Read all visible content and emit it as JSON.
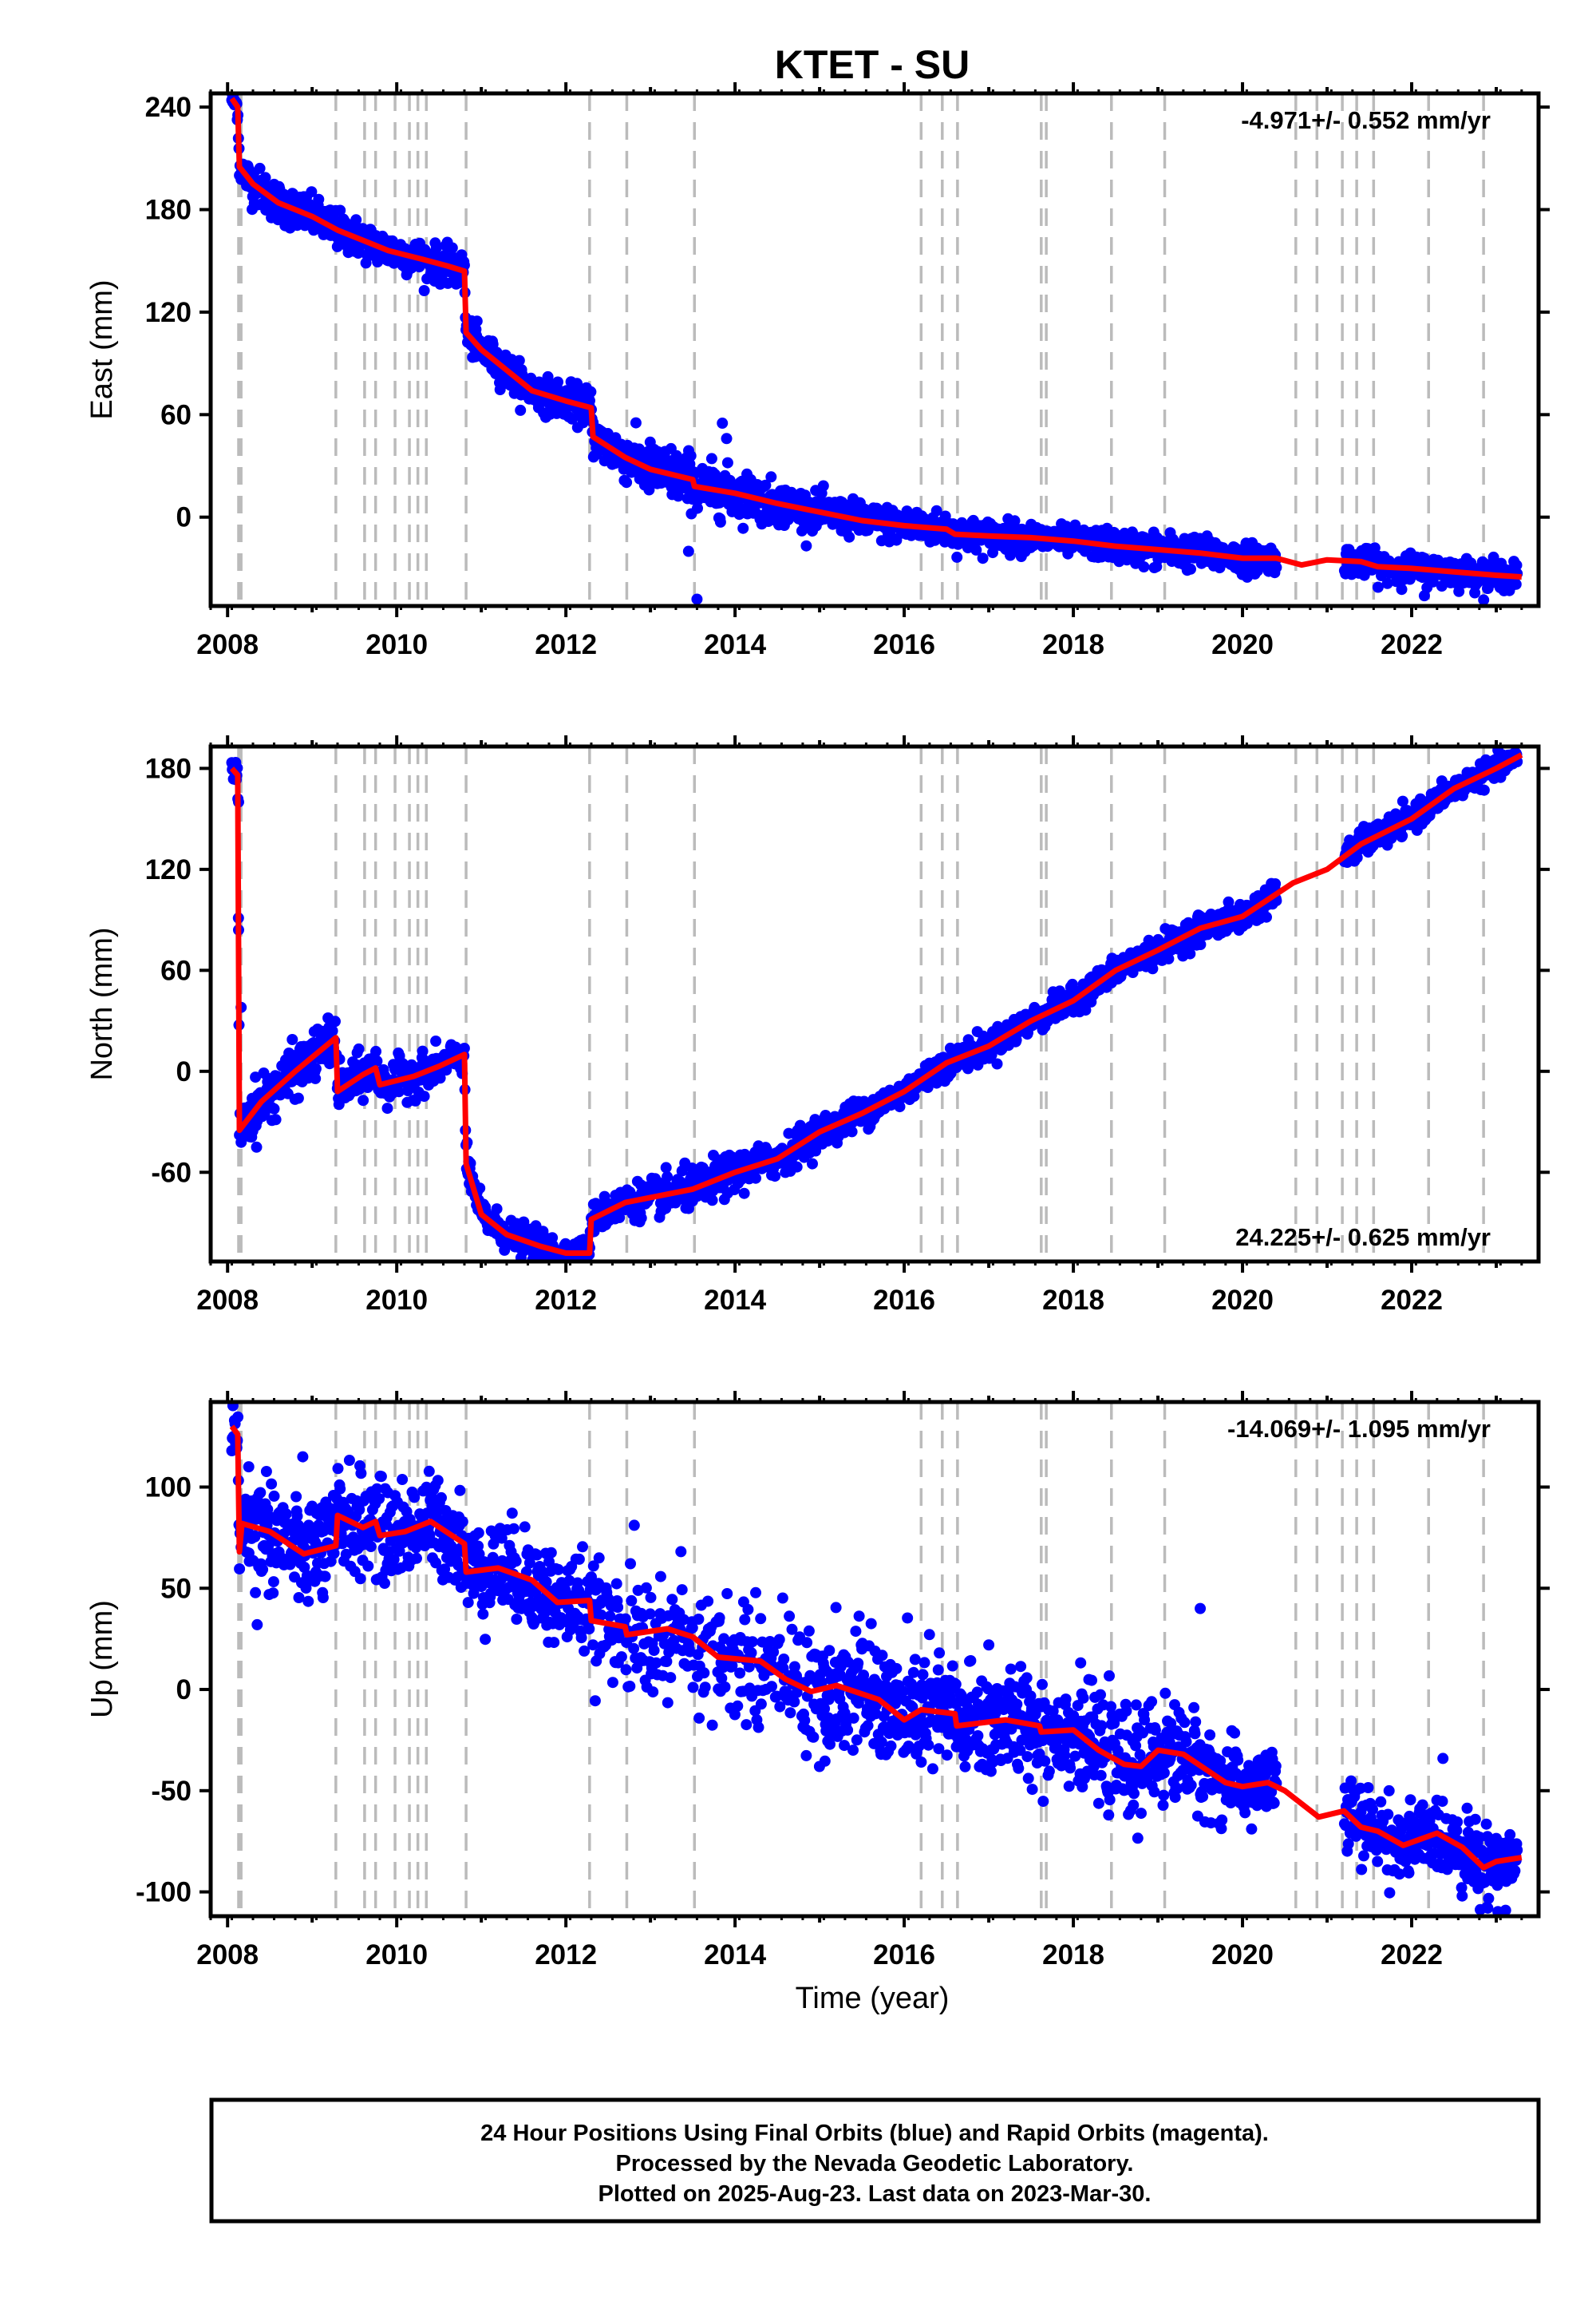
{
  "title": "KTET - SU",
  "xlabel": "Time (year)",
  "footer": {
    "line1": "24 Hour Positions Using Final Orbits (blue) and Rapid Orbits (magenta).",
    "line2": "Processed by the Nevada Geodetic Laboratory.",
    "line3": "Plotted on 2025-Aug-23. Last data on 2023-Mar-30."
  },
  "colors": {
    "data": "#0000ff",
    "model": "#ff0000",
    "steps": "#bbbbbb",
    "frame": "#000000"
  },
  "chart_data": [
    {
      "type": "scatter",
      "component": "east",
      "ylabel": "East (mm)",
      "rate_label": "-4.971+/- 0.552 mm/yr",
      "rate_position": "top-right",
      "xlim": [
        2007.8,
        2023.5
      ],
      "ylim": [
        -52,
        248
      ],
      "xticks": [
        "2008",
        "2010",
        "2012",
        "2014",
        "2016",
        "2018",
        "2020",
        "2022"
      ],
      "yticks": [
        "240",
        "180",
        "120",
        "60",
        "0"
      ],
      "model": [
        [
          2008.05,
          245
        ],
        [
          2008.12,
          240
        ],
        [
          2008.14,
          205
        ],
        [
          2008.3,
          195
        ],
        [
          2008.6,
          184
        ],
        [
          2009.0,
          176
        ],
        [
          2009.3,
          168
        ],
        [
          2009.6,
          162
        ],
        [
          2009.9,
          156
        ],
        [
          2010.3,
          151
        ],
        [
          2010.6,
          147
        ],
        [
          2010.8,
          144
        ],
        [
          2010.82,
          108
        ],
        [
          2011.0,
          98
        ],
        [
          2011.3,
          86
        ],
        [
          2011.6,
          74
        ],
        [
          2012.0,
          68
        ],
        [
          2012.3,
          64
        ],
        [
          2012.32,
          47
        ],
        [
          2012.7,
          35
        ],
        [
          2013.0,
          28
        ],
        [
          2013.5,
          22
        ],
        [
          2013.52,
          18
        ],
        [
          2014.0,
          14
        ],
        [
          2014.5,
          8
        ],
        [
          2015.0,
          3
        ],
        [
          2015.5,
          -2
        ],
        [
          2016.0,
          -5
        ],
        [
          2016.5,
          -7
        ],
        [
          2016.6,
          -10
        ],
        [
          2017.0,
          -11
        ],
        [
          2017.5,
          -12
        ],
        [
          2018.0,
          -14
        ],
        [
          2018.5,
          -17
        ],
        [
          2019.0,
          -19
        ],
        [
          2019.5,
          -21
        ],
        [
          2020.0,
          -24
        ],
        [
          2020.4,
          -24
        ],
        [
          2020.7,
          -28
        ],
        [
          2021.0,
          -25
        ],
        [
          2021.4,
          -26
        ],
        [
          2021.6,
          -29
        ],
        [
          2022.0,
          -30
        ],
        [
          2022.5,
          -32
        ],
        [
          2023.0,
          -34
        ],
        [
          2023.3,
          -35
        ]
      ],
      "spread": [
        [
          2008.05,
          3
        ],
        [
          2008.3,
          6
        ],
        [
          2010.8,
          5
        ],
        [
          2012.0,
          5
        ],
        [
          2013.2,
          8
        ],
        [
          2014.0,
          7
        ],
        [
          2015.0,
          5
        ],
        [
          2016.0,
          5
        ],
        [
          2018.0,
          4
        ],
        [
          2019.0,
          5
        ],
        [
          2020.4,
          4
        ],
        [
          2021.2,
          4
        ],
        [
          2023.3,
          4
        ]
      ],
      "outliers": [
        [
          2013.45,
          -20
        ],
        [
          2013.55,
          -48
        ],
        [
          2013.85,
          55
        ],
        [
          2013.9,
          46
        ],
        [
          2022.15,
          -46
        ]
      ],
      "gaps": [
        [
          2020.4,
          2021.2
        ]
      ]
    },
    {
      "type": "scatter",
      "component": "north",
      "ylabel": "North (mm)",
      "rate_label": "24.225+/- 0.625 mm/yr",
      "rate_position": "bottom-right",
      "xlim": [
        2007.8,
        2023.5
      ],
      "ylim": [
        -113,
        193
      ],
      "xticks": [
        "2008",
        "2010",
        "2012",
        "2014",
        "2016",
        "2018",
        "2020",
        "2022"
      ],
      "yticks": [
        "180",
        "120",
        "60",
        "0",
        "-60"
      ],
      "model": [
        [
          2008.05,
          180
        ],
        [
          2008.12,
          176
        ],
        [
          2008.14,
          -35
        ],
        [
          2008.4,
          -18
        ],
        [
          2008.8,
          0
        ],
        [
          2009.28,
          20
        ],
        [
          2009.3,
          -12
        ],
        [
          2009.6,
          -2
        ],
        [
          2009.75,
          2
        ],
        [
          2009.8,
          -8
        ],
        [
          2010.2,
          -3
        ],
        [
          2010.5,
          3
        ],
        [
          2010.8,
          10
        ],
        [
          2010.82,
          -55
        ],
        [
          2011.0,
          -85
        ],
        [
          2011.3,
          -97
        ],
        [
          2011.7,
          -104
        ],
        [
          2012.0,
          -108
        ],
        [
          2012.28,
          -108
        ],
        [
          2012.3,
          -88
        ],
        [
          2012.7,
          -78
        ],
        [
          2013.5,
          -70
        ],
        [
          2014.0,
          -60
        ],
        [
          2014.5,
          -52
        ],
        [
          2015.0,
          -36
        ],
        [
          2015.5,
          -25
        ],
        [
          2016.0,
          -12
        ],
        [
          2016.5,
          5
        ],
        [
          2017.0,
          15
        ],
        [
          2017.5,
          30
        ],
        [
          2018.0,
          42
        ],
        [
          2018.5,
          60
        ],
        [
          2019.0,
          72
        ],
        [
          2019.5,
          85
        ],
        [
          2020.0,
          92
        ],
        [
          2020.6,
          112
        ],
        [
          2021.0,
          120
        ],
        [
          2021.4,
          135
        ],
        [
          2022.0,
          150
        ],
        [
          2022.5,
          168
        ],
        [
          2023.0,
          180
        ],
        [
          2023.3,
          188
        ]
      ],
      "spread": [
        [
          2008.05,
          3
        ],
        [
          2008.3,
          8
        ],
        [
          2010.8,
          5
        ],
        [
          2012.0,
          4
        ],
        [
          2013.5,
          6
        ],
        [
          2016.0,
          4
        ],
        [
          2020.0,
          4
        ],
        [
          2021.2,
          4
        ],
        [
          2023.3,
          3
        ]
      ],
      "outliers": [
        [
          2008.13,
          84
        ],
        [
          2008.16,
          38
        ],
        [
          2008.13,
          160
        ]
      ],
      "gaps": [
        [
          2020.4,
          2021.2
        ]
      ]
    },
    {
      "type": "scatter",
      "component": "up",
      "ylabel": "Up (mm)",
      "rate_label": "-14.069+/- 1.095 mm/yr",
      "rate_position": "top-right",
      "xlim": [
        2007.8,
        2023.5
      ],
      "ylim": [
        -112,
        142
      ],
      "xticks": [
        "2008",
        "2010",
        "2012",
        "2014",
        "2016",
        "2018",
        "2020",
        "2022"
      ],
      "yticks": [
        "100",
        "50",
        "0",
        "-50",
        "-100"
      ],
      "model": [
        [
          2008.05,
          130
        ],
        [
          2008.12,
          126
        ],
        [
          2008.14,
          68
        ],
        [
          2008.17,
          82
        ],
        [
          2008.5,
          78
        ],
        [
          2008.9,
          67
        ],
        [
          2009.28,
          71
        ],
        [
          2009.3,
          86
        ],
        [
          2009.6,
          80
        ],
        [
          2009.75,
          83
        ],
        [
          2009.8,
          76
        ],
        [
          2010.1,
          78
        ],
        [
          2010.4,
          83
        ],
        [
          2010.8,
          72
        ],
        [
          2010.82,
          58
        ],
        [
          2011.2,
          60
        ],
        [
          2011.6,
          54
        ],
        [
          2011.9,
          43
        ],
        [
          2012.28,
          44
        ],
        [
          2012.3,
          34
        ],
        [
          2012.7,
          31
        ],
        [
          2012.72,
          27
        ],
        [
          2013.2,
          30
        ],
        [
          2013.5,
          26
        ],
        [
          2013.8,
          16
        ],
        [
          2014.3,
          14
        ],
        [
          2014.6,
          5
        ],
        [
          2014.9,
          -1
        ],
        [
          2015.2,
          2
        ],
        [
          2015.7,
          -5
        ],
        [
          2016.0,
          -15
        ],
        [
          2016.2,
          -10
        ],
        [
          2016.6,
          -12
        ],
        [
          2016.62,
          -18
        ],
        [
          2017.2,
          -15
        ],
        [
          2017.6,
          -18
        ],
        [
          2017.62,
          -21
        ],
        [
          2018.0,
          -20
        ],
        [
          2018.3,
          -30
        ],
        [
          2018.6,
          -37
        ],
        [
          2018.8,
          -38
        ],
        [
          2019.0,
          -30
        ],
        [
          2019.3,
          -32
        ],
        [
          2019.8,
          -46
        ],
        [
          2020.0,
          -48
        ],
        [
          2020.3,
          -46
        ],
        [
          2020.5,
          -50
        ],
        [
          2020.9,
          -63
        ],
        [
          2021.2,
          -60
        ],
        [
          2021.4,
          -68
        ],
        [
          2021.6,
          -70
        ],
        [
          2021.9,
          -77
        ],
        [
          2022.3,
          -71
        ],
        [
          2022.6,
          -78
        ],
        [
          2022.85,
          -88
        ],
        [
          2023.0,
          -85
        ],
        [
          2023.3,
          -83
        ]
      ],
      "spread": [
        [
          2008.05,
          6
        ],
        [
          2008.3,
          14
        ],
        [
          2010.8,
          11
        ],
        [
          2012.0,
          12
        ],
        [
          2013.5,
          16
        ],
        [
          2014.5,
          14
        ],
        [
          2015.0,
          14
        ],
        [
          2016.0,
          15
        ],
        [
          2018.0,
          12
        ],
        [
          2019.0,
          13
        ],
        [
          2020.0,
          9
        ],
        [
          2021.2,
          9
        ],
        [
          2023.3,
          9
        ]
      ],
      "outliers": [
        [
          2008.25,
          110
        ],
        [
          2008.35,
          32
        ],
        [
          2019.5,
          40
        ],
        [
          2017.0,
          22
        ],
        [
          2015.5,
          20
        ],
        [
          2022.9,
          -108
        ]
      ],
      "gaps": [
        [
          2020.4,
          2021.2
        ]
      ]
    }
  ],
  "steps": [
    2008.13,
    2008.16,
    2009.28,
    2009.62,
    2009.75,
    2009.98,
    2010.15,
    2010.25,
    2010.35,
    2010.82,
    2012.28,
    2012.72,
    2013.52,
    2016.2,
    2016.45,
    2016.63,
    2017.62,
    2017.68,
    2018.45,
    2019.08,
    2020.63,
    2020.88,
    2021.18,
    2021.35,
    2021.55,
    2022.2,
    2022.85
  ]
}
